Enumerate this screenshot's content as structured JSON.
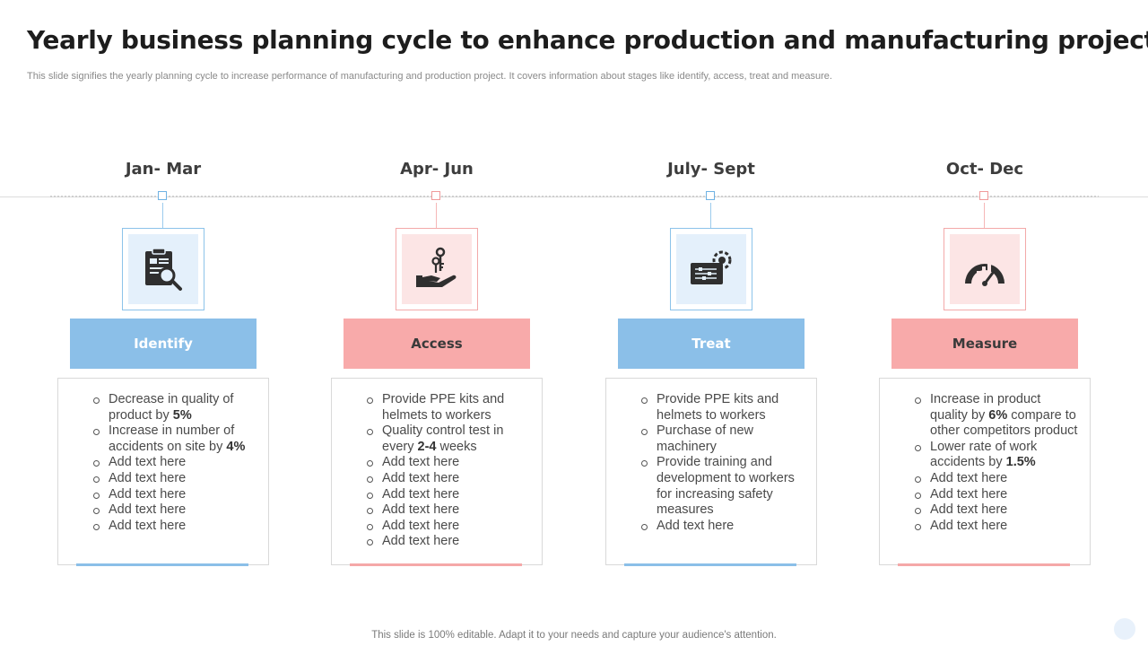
{
  "title": "Yearly business planning cycle to enhance production and manufacturing project",
  "subtitle": "This slide signifies the yearly planning cycle to increase performance of manufacturing and production project. It covers information about stages like identify, access, treat and measure.",
  "colors": {
    "blue": "#8bbfe8",
    "pink": "#f8aaaa"
  },
  "columns": [
    {
      "period": "Jan- Mar",
      "stage": "Identify",
      "icon": "clipboard-search-icon",
      "items": [
        "Decrease in quality of product by <b>5%</b>",
        "Increase in number of accidents on site by <b>4%</b>",
        "Add text here",
        "Add text here",
        "Add text here",
        "Add text here",
        "Add text here"
      ]
    },
    {
      "period": "Apr- Jun",
      "stage": "Access",
      "icon": "hand-keys-icon",
      "items": [
        "Provide PPE kits and helmets to workers",
        "Quality control test in every <b>2-4</b> weeks",
        "Add text here",
        "Add text here",
        "Add text here",
        "Add text here",
        "Add text here",
        "Add text here"
      ]
    },
    {
      "period": "July- Sept",
      "stage": "Treat",
      "icon": "control-panel-gear-icon",
      "items": [
        "Provide PPE kits and helmets to workers",
        "Purchase of new machinery",
        "Provide training and development to workers for increasing safety measures",
        "Add text here"
      ]
    },
    {
      "period": "Oct- Dec",
      "stage": "Measure",
      "icon": "gauge-chart-icon",
      "items": [
        "Increase in product quality by <b>6%</b> compare to other competitors product",
        "Lower rate of work accidents by <b>1.5%</b>",
        "Add text here",
        "Add text here",
        "Add text here",
        "Add text here"
      ]
    }
  ],
  "footer": "This slide is 100% editable. Adapt it to your needs and capture your audience's attention."
}
